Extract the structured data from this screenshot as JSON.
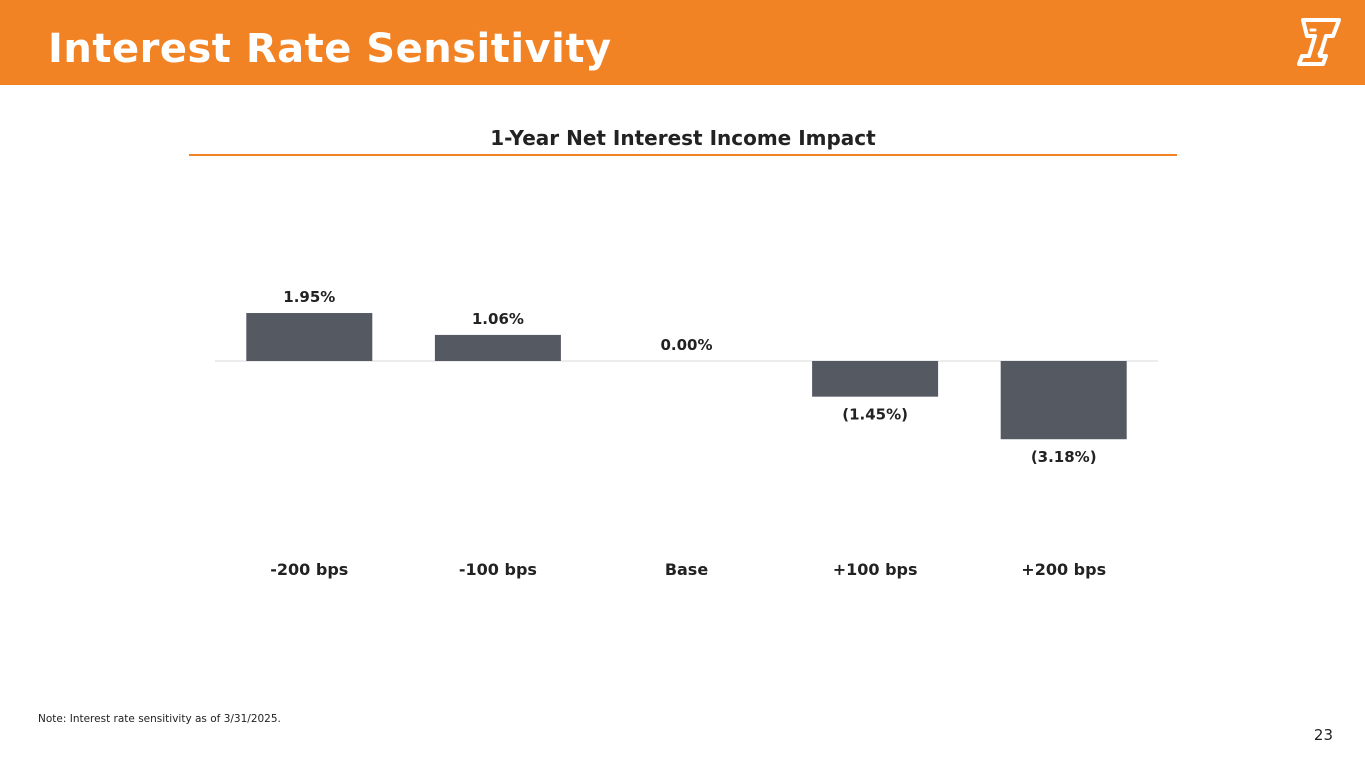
{
  "header": {
    "title": "Interest Rate Sensitivity",
    "background": "#F28325",
    "logo_icon": "company-logo-icon"
  },
  "colors": {
    "accent": "#F28325",
    "bar": "#555962",
    "baseline": "#d9d9d9",
    "text": "#222222"
  },
  "chart_data": {
    "type": "bar",
    "title": "1-Year Net Interest Income Impact",
    "categories": [
      "-200 bps",
      "-100 bps",
      "Base",
      "+100 bps",
      "+200 bps"
    ],
    "values": [
      1.95,
      1.06,
      0.0,
      -1.45,
      -3.18
    ],
    "data_labels": [
      "1.95%",
      "1.06%",
      "0.00%",
      "(1.45%)",
      "(3.18%)"
    ],
    "unit": "%",
    "xlabel": "",
    "ylabel": "",
    "grid": false,
    "legend": "none"
  },
  "footer": {
    "note": "Note: Interest rate sensitivity as of 3/31/2025.",
    "page_number": "23"
  }
}
